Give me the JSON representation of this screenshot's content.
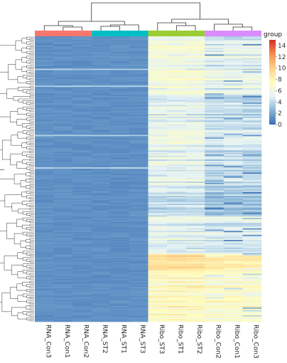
{
  "chart_data": {
    "type": "heatmap",
    "title": "",
    "legend": {
      "title": "group",
      "ticks": [
        0,
        2,
        4,
        6,
        8,
        10,
        12,
        14
      ],
      "min": 0,
      "max": 15
    },
    "colorscale": [
      "#3a6fb4",
      "#87b4d6",
      "#e6f3f6",
      "#fffdbf",
      "#fdd38a",
      "#f48d52",
      "#d32f27"
    ],
    "columns": [
      "RNA_Con3",
      "RNA_Con1",
      "RNA_Con2",
      "RNA_ST2",
      "RNA_ST1",
      "RNA_ST3",
      "Ribo_ST3",
      "Ribo_ST1",
      "Ribo_ST2",
      "Ribo_Con2",
      "Ribo_Con1",
      "Ribo_Con3"
    ],
    "column_groups": [
      {
        "color": "#f8766d",
        "columns": [
          "RNA_Con3",
          "RNA_Con1",
          "RNA_Con2"
        ]
      },
      {
        "color": "#00bfc4",
        "columns": [
          "RNA_ST2",
          "RNA_ST1",
          "RNA_ST3"
        ]
      },
      {
        "color": "#9acd32",
        "columns": [
          "Ribo_ST3",
          "Ribo_ST1",
          "Ribo_ST2"
        ]
      },
      {
        "color": "#da8bff",
        "columns": [
          "Ribo_Con2",
          "Ribo_Con1",
          "Ribo_Con3"
        ]
      }
    ],
    "row_profile": {
      "rna_mean": 1.2,
      "ribo_segments": [
        {
          "from": 0.0,
          "to": 0.05,
          "st": 6.5,
          "con": 5.0
        },
        {
          "from": 0.05,
          "to": 0.2,
          "st": 6.0,
          "con": 5.0
        },
        {
          "from": 0.2,
          "to": 0.4,
          "st": 5.2,
          "con": 4.2
        },
        {
          "from": 0.4,
          "to": 0.55,
          "st": 5.0,
          "con": 3.8
        },
        {
          "from": 0.55,
          "to": 0.63,
          "st": 4.2,
          "con": 3.2
        },
        {
          "from": 0.63,
          "to": 0.76,
          "st": 5.0,
          "con": 4.6
        },
        {
          "from": 0.76,
          "to": 0.82,
          "st": 9.5,
          "con": 8.5
        },
        {
          "from": 0.82,
          "to": 1.0,
          "st": 7.5,
          "con": 7.0
        }
      ],
      "row_count": 220
    }
  }
}
